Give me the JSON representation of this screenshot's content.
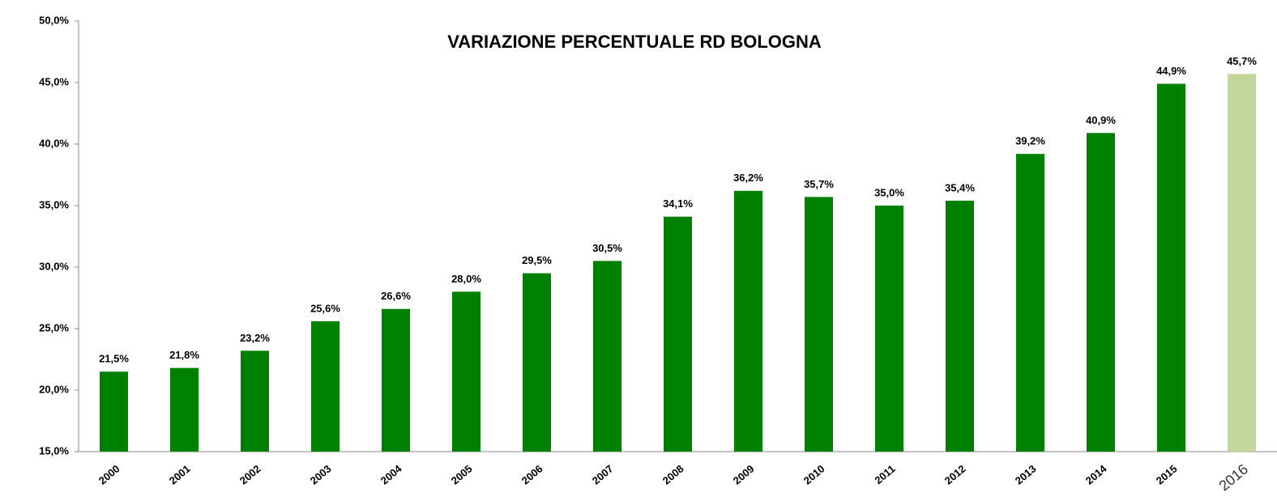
{
  "chart_data": {
    "type": "bar",
    "title": "VARIAZIONE PERCENTUALE RD BOLOGNA",
    "categories": [
      "2000",
      "2001",
      "2002",
      "2003",
      "2004",
      "2005",
      "2006",
      "2007",
      "2008",
      "2009",
      "2010",
      "2011",
      "2012",
      "2013",
      "2014",
      "2015",
      "2016"
    ],
    "values": [
      21.5,
      21.8,
      23.2,
      25.6,
      26.6,
      28.0,
      29.5,
      30.5,
      34.1,
      36.2,
      35.7,
      35.0,
      35.4,
      39.2,
      40.9,
      44.9,
      45.7
    ],
    "value_labels": [
      "21,5%",
      "21,8%",
      "23,2%",
      "25,6%",
      "26,6%",
      "28,0%",
      "29,5%",
      "30,5%",
      "34,1%",
      "36,2%",
      "35,7%",
      "35,0%",
      "35,4%",
      "39,2%",
      "40,9%",
      "44,9%",
      "45,7%"
    ],
    "colors": [
      "#008000",
      "#008000",
      "#008000",
      "#008000",
      "#008000",
      "#008000",
      "#008000",
      "#008000",
      "#008000",
      "#008000",
      "#008000",
      "#008000",
      "#008000",
      "#008000",
      "#008000",
      "#008000",
      "#c4d79b"
    ],
    "ylim": [
      15,
      50
    ],
    "yticks": [
      {
        "value": 15,
        "label": "15,0%"
      },
      {
        "value": 20,
        "label": "20,0%"
      },
      {
        "value": 25,
        "label": "25,0%"
      },
      {
        "value": 30,
        "label": "30,0%"
      },
      {
        "value": 35,
        "label": "35,0%"
      },
      {
        "value": 40,
        "label": "40,0%"
      },
      {
        "value": 45,
        "label": "45,0%"
      },
      {
        "value": 50,
        "label": "50,0%"
      }
    ],
    "grid": false
  }
}
